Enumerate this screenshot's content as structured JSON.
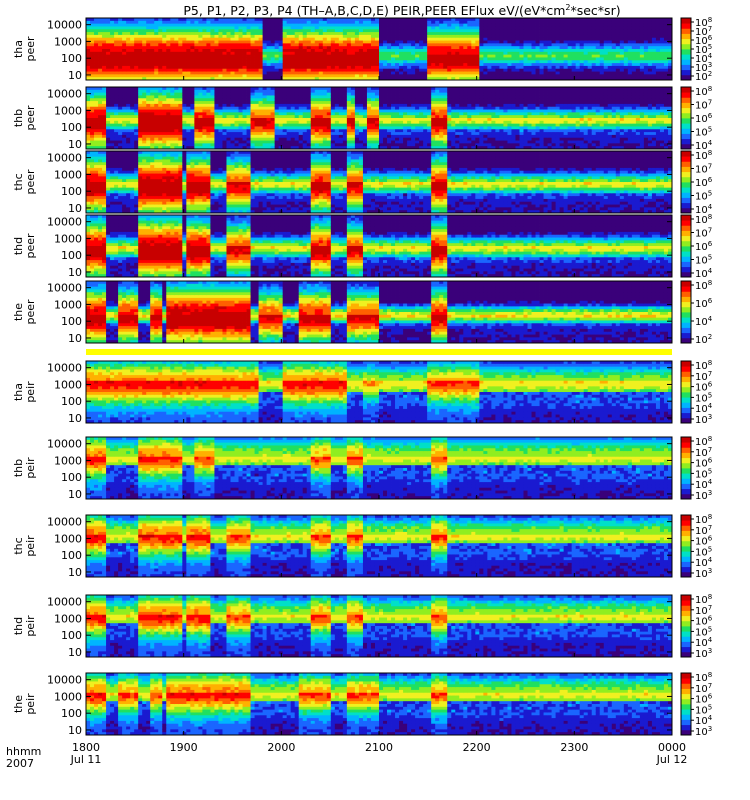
{
  "chart_data": {
    "type": "heatmap",
    "title_parts": [
      "P5, P1, P2, P3, P4 (TH–A,B,C,D,E) PEIR,PEER EFlux eV/(eV*cm",
      "2",
      "*sec*sr)"
    ],
    "x_axis": {
      "row_labels": [
        "hhmm",
        "2007"
      ],
      "ticks": [
        "1800",
        "1900",
        "2000",
        "2100",
        "2200",
        "2300",
        "0000"
      ],
      "date_labels": [
        "Jul 11",
        "",
        "",
        "",
        "",
        "",
        "Jul 12"
      ],
      "range": [
        "1800",
        "0000"
      ]
    },
    "y_axis": {
      "scale": "log",
      "ticks": [
        "10",
        "100",
        "1000",
        "10000"
      ],
      "range_ev": [
        5,
        25000
      ]
    },
    "colormap": [
      "#3a007a",
      "#1a1ad0",
      "#1a66ff",
      "#00b4ff",
      "#00e0c8",
      "#20e060",
      "#90ee20",
      "#f0f020",
      "#ffb000",
      "#ff6000",
      "#ff0000",
      "#c80000"
    ],
    "panels": [
      {
        "probe": "tha",
        "species": "peer",
        "cbar_ticks": [
          "10",
          "10",
          "10",
          "10",
          "10",
          "10",
          "10"
        ],
        "cbar_exp": [
          "8",
          "7",
          "6",
          "5",
          "4",
          "3",
          "2"
        ],
        "core_ev": [
          150,
          120
        ],
        "base": 0.45,
        "fill": 0.82,
        "low_fill": 0.35,
        "events": [
          [
            1800,
            1948,
            0.95
          ],
          [
            1968,
            2062,
            0.95
          ],
          [
            2128,
            2190,
            0.9
          ],
          [
            2262,
            2282,
            0.5
          ]
        ]
      },
      {
        "probe": "thb",
        "species": "peer",
        "cbar_ticks": [
          "10",
          "10",
          "10",
          "10",
          "10"
        ],
        "cbar_exp": [
          "8",
          "7",
          "6",
          "5",
          "4"
        ],
        "core_ev": [
          300,
          250
        ],
        "base": 0.55,
        "fill": 0.3,
        "low_fill": 0.85,
        "events": [
          [
            1800,
            1810,
            0.9
          ],
          [
            1832,
            1858,
            0.95
          ],
          [
            1868,
            1880,
            0.9
          ],
          [
            1885,
            1895,
            0.9
          ],
          [
            1905,
            1918,
            0.85
          ],
          [
            1940,
            1955,
            0.8
          ],
          [
            2018,
            2028,
            0.85
          ],
          [
            2038,
            2045,
            0.8
          ],
          [
            2052,
            2062,
            0.8
          ],
          [
            2078,
            2088,
            0.9
          ],
          [
            2132,
            2140,
            0.85
          ],
          [
            2162,
            2182,
            0.9
          ]
        ]
      },
      {
        "probe": "thc",
        "species": "peer",
        "cbar_ticks": [
          "10",
          "10",
          "10",
          "10",
          "10"
        ],
        "cbar_exp": [
          "8",
          "7",
          "6",
          "5",
          "4"
        ],
        "core_ev": [
          300,
          250
        ],
        "base": 0.55,
        "fill": 0.3,
        "low_fill": 0.85,
        "events": [
          [
            1800,
            1812,
            0.9
          ],
          [
            1830,
            1858,
            0.95
          ],
          [
            1862,
            1885,
            0.9
          ],
          [
            1890,
            1915,
            0.9
          ],
          [
            1925,
            1940,
            0.8
          ],
          [
            2018,
            2030,
            0.85
          ],
          [
            2038,
            2050,
            0.8
          ],
          [
            2078,
            2088,
            0.9
          ],
          [
            2132,
            2140,
            0.85
          ],
          [
            2162,
            2182,
            0.9
          ]
        ]
      },
      {
        "probe": "thd",
        "species": "peer",
        "cbar_ticks": [
          "10",
          "10",
          "10",
          "10",
          "10"
        ],
        "cbar_exp": [
          "8",
          "7",
          "6",
          "5",
          "4"
        ],
        "core_ev": [
          300,
          250
        ],
        "base": 0.55,
        "fill": 0.3,
        "low_fill": 0.85,
        "events": [
          [
            1800,
            1812,
            0.9
          ],
          [
            1830,
            1858,
            0.95
          ],
          [
            1862,
            1885,
            0.9
          ],
          [
            1890,
            1915,
            0.9
          ],
          [
            1925,
            1940,
            0.8
          ],
          [
            2018,
            2030,
            0.85
          ],
          [
            2038,
            2050,
            0.8
          ],
          [
            2078,
            2088,
            0.9
          ],
          [
            2132,
            2140,
            0.85
          ],
          [
            2162,
            2182,
            0.9
          ]
        ]
      },
      {
        "probe": "the",
        "species": "peer",
        "cbar_ticks": [
          "10",
          "10",
          "10",
          "10"
        ],
        "cbar_exp": [
          "8",
          "6",
          "4",
          "2"
        ],
        "core_ev": [
          250,
          250
        ],
        "base": 0.6,
        "fill": 0.35,
        "low_fill": 0.8,
        "events": [
          [
            1800,
            1810,
            0.9
          ],
          [
            1818,
            1830,
            0.85
          ],
          [
            1838,
            1845,
            0.85
          ],
          [
            1848,
            1880,
            0.95
          ],
          [
            1885,
            1940,
            0.95
          ],
          [
            1945,
            1960,
            0.8
          ],
          [
            1975,
            1985,
            0.8
          ],
          [
            2010,
            2030,
            0.85
          ],
          [
            2040,
            2060,
            0.8
          ],
          [
            2078,
            2088,
            0.9
          ],
          [
            2132,
            2140,
            0.85
          ],
          [
            2162,
            2182,
            0.9
          ]
        ]
      },
      {
        "probe": "tha",
        "species": "peir",
        "cbar_ticks": [
          "10",
          "10",
          "10",
          "10",
          "10",
          "10"
        ],
        "cbar_exp": [
          "8",
          "7",
          "6",
          "5",
          "4",
          "3"
        ],
        "core_ev": [
          1400,
          600
        ],
        "base": 0.55,
        "fill": 0.25,
        "low_fill": 0.9,
        "events": [
          [
            1800,
            1945,
            0.75
          ],
          [
            1968,
            2040,
            0.75
          ],
          [
            2050,
            2075,
            0.6
          ],
          [
            2128,
            2190,
            0.7
          ],
          [
            2262,
            2282,
            0.6
          ]
        ]
      },
      {
        "probe": "thb",
        "species": "peir",
        "cbar_ticks": [
          "10",
          "10",
          "10",
          "10",
          "10",
          "10"
        ],
        "cbar_exp": [
          "8",
          "7",
          "6",
          "5",
          "4",
          "3"
        ],
        "core_ev": [
          2000,
          800
        ],
        "base": 0.55,
        "fill": 0.25,
        "low_fill": 0.9,
        "events": [
          [
            1800,
            1810,
            0.75
          ],
          [
            1832,
            1858,
            0.75
          ],
          [
            1888,
            1897,
            0.7
          ],
          [
            1905,
            1918,
            0.7
          ],
          [
            2018,
            2028,
            0.7
          ],
          [
            2040,
            2048,
            0.7
          ],
          [
            2078,
            2088,
            0.7
          ],
          [
            2132,
            2140,
            0.7
          ],
          [
            2162,
            2182,
            0.7
          ]
        ]
      },
      {
        "probe": "thc",
        "species": "peir",
        "cbar_ticks": [
          "10",
          "10",
          "10",
          "10",
          "10",
          "10"
        ],
        "cbar_exp": [
          "8",
          "7",
          "6",
          "5",
          "4",
          "3"
        ],
        "core_ev": [
          1800,
          800
        ],
        "base": 0.55,
        "fill": 0.25,
        "low_fill": 0.9,
        "events": [
          [
            1800,
            1810,
            0.75
          ],
          [
            1830,
            1858,
            0.75
          ],
          [
            1862,
            1885,
            0.75
          ],
          [
            1890,
            1915,
            0.75
          ],
          [
            1925,
            1940,
            0.7
          ],
          [
            2018,
            2030,
            0.7
          ],
          [
            2040,
            2050,
            0.7
          ],
          [
            2078,
            2088,
            0.7
          ],
          [
            2132,
            2140,
            0.7
          ],
          [
            2162,
            2182,
            0.7
          ]
        ]
      },
      {
        "probe": "thd",
        "species": "peir",
        "cbar_ticks": [
          "10",
          "10",
          "10",
          "10",
          "10",
          "10"
        ],
        "cbar_exp": [
          "8",
          "7",
          "6",
          "5",
          "4",
          "3"
        ],
        "core_ev": [
          1800,
          800
        ],
        "base": 0.55,
        "fill": 0.25,
        "low_fill": 0.9,
        "events": [
          [
            1800,
            1810,
            0.75
          ],
          [
            1830,
            1858,
            0.75
          ],
          [
            1862,
            1885,
            0.75
          ],
          [
            1890,
            1915,
            0.75
          ],
          [
            1925,
            1940,
            0.7
          ],
          [
            2018,
            2030,
            0.7
          ],
          [
            2040,
            2050,
            0.7
          ],
          [
            2078,
            2088,
            0.7
          ],
          [
            2132,
            2140,
            0.7
          ],
          [
            2162,
            2182,
            0.7
          ]
        ]
      },
      {
        "probe": "the",
        "species": "peir",
        "cbar_ticks": [
          "10",
          "10",
          "10",
          "10",
          "10",
          "10"
        ],
        "cbar_exp": [
          "8",
          "7",
          "6",
          "5",
          "4",
          "3"
        ],
        "core_ev": [
          1800,
          800
        ],
        "base": 0.55,
        "fill": 0.25,
        "low_fill": 0.9,
        "events": [
          [
            1800,
            1810,
            0.75
          ],
          [
            1818,
            1830,
            0.7
          ],
          [
            1838,
            1845,
            0.7
          ],
          [
            1848,
            1880,
            0.75
          ],
          [
            1885,
            1940,
            0.75
          ],
          [
            1975,
            1985,
            0.7
          ],
          [
            2010,
            2030,
            0.7
          ],
          [
            2040,
            2060,
            0.7
          ],
          [
            2078,
            2088,
            0.7
          ],
          [
            2132,
            2140,
            0.7
          ],
          [
            2162,
            2182,
            0.7
          ]
        ]
      }
    ]
  }
}
